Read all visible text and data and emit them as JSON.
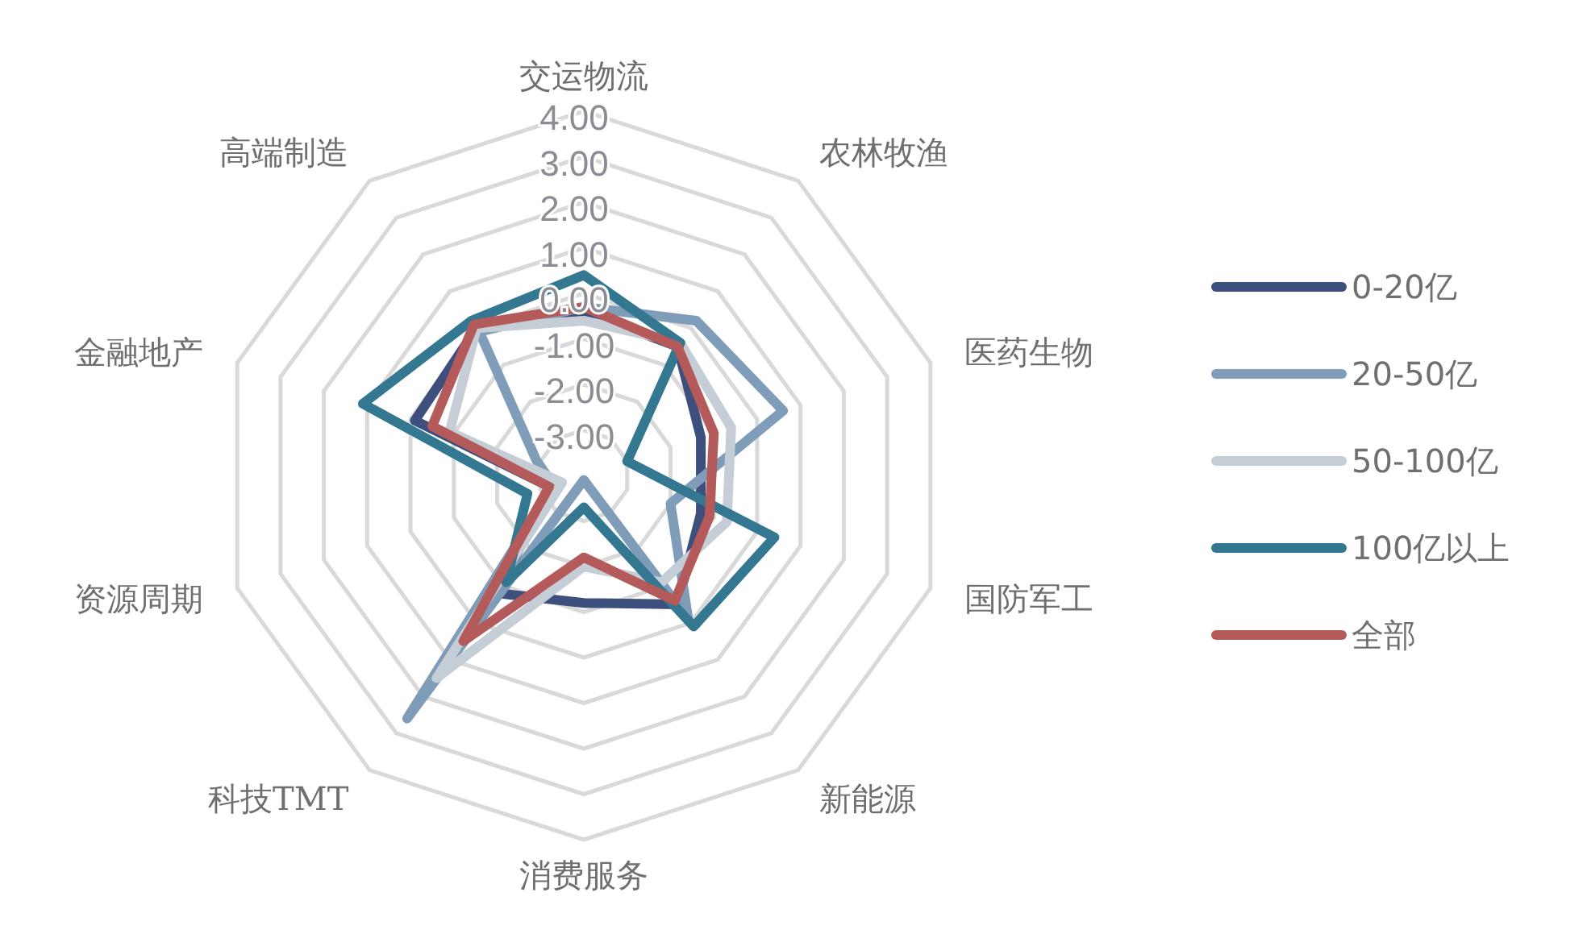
{
  "chart_data": {
    "type": "radar",
    "categories": [
      "交运物流",
      "农林牧渔",
      "医药生物",
      "国防军工",
      "新能源",
      "消费服务",
      "科技TMT",
      "资源周期",
      "金融地产",
      "高端制造"
    ],
    "ylim": [
      -4,
      4
    ],
    "yticks": [
      {
        "value": -3,
        "label": "-3.00"
      },
      {
        "value": -2,
        "label": "-2.00"
      },
      {
        "value": -1,
        "label": "-1.00"
      },
      {
        "value": 0,
        "label": "0.00"
      },
      {
        "value": 1,
        "label": "1.00"
      },
      {
        "value": 2,
        "label": "2.00"
      },
      {
        "value": 3,
        "label": "3.00"
      },
      {
        "value": 4,
        "label": "4.00"
      }
    ],
    "grid": true,
    "legend": "right",
    "line_style": "solid",
    "marker": "none",
    "series": [
      {
        "name": "0-20亿",
        "color": "#3d4f7c",
        "values": [
          -0.4,
          -0.5,
          -1.3,
          -1.3,
          -0.5,
          -1.2,
          -0.8,
          -3.2,
          -0.1,
          0.0
        ]
      },
      {
        "name": "20-50亿",
        "color": "#7f9cb8",
        "values": [
          -0.3,
          0.2,
          0.6,
          -2.0,
          -0.1,
          -3.9,
          2.6,
          -3.3,
          -2.9,
          -0.1
        ]
      },
      {
        "name": "50-100亿",
        "color": "#c5cdd6",
        "values": [
          -0.6,
          -0.4,
          -0.6,
          -0.7,
          -1.1,
          -2.0,
          1.5,
          -3.5,
          -0.9,
          0.0
        ]
      },
      {
        "name": "100亿以上",
        "color": "#347790",
        "values": [
          0.4,
          -0.4,
          -3.0,
          0.4,
          0.1,
          -3.3,
          -1.1,
          -2.7,
          1.1,
          0.2
        ]
      },
      {
        "name": "全部",
        "color": "#b55a5a",
        "values": [
          -0.3,
          -0.5,
          -1.0,
          -1.1,
          -0.6,
          -2.2,
          0.5,
          -3.2,
          -0.5,
          0.1
        ]
      }
    ]
  }
}
